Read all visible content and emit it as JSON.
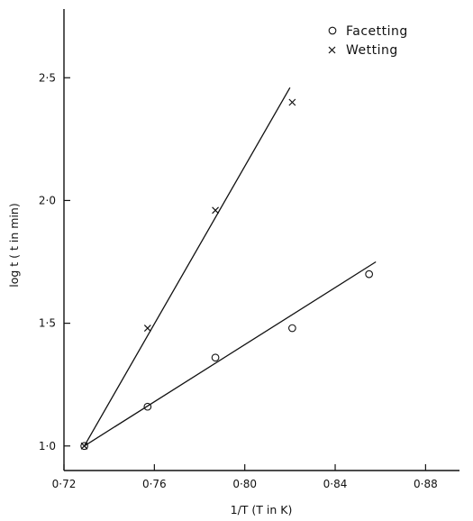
{
  "chart_data": {
    "type": "scatter",
    "xlabel": "1/T  (T in  K)",
    "ylabel": "log t  ( t in min)",
    "xlim": [
      0.72,
      0.895
    ],
    "ylim": [
      0.9,
      2.78
    ],
    "x_ticks": [
      {
        "value": 0.72,
        "label": "0·72"
      },
      {
        "value": 0.76,
        "label": "0·76"
      },
      {
        "value": 0.8,
        "label": "0·80"
      },
      {
        "value": 0.84,
        "label": "0·84"
      },
      {
        "value": 0.88,
        "label": "0·88"
      }
    ],
    "y_ticks": [
      {
        "value": 1.0,
        "label": "1·0"
      },
      {
        "value": 1.5,
        "label": "1·5"
      },
      {
        "value": 2.0,
        "label": "2·0"
      },
      {
        "value": 2.5,
        "label": "2·5"
      }
    ],
    "grid": false,
    "legend_position": "top-right",
    "series": [
      {
        "name": "Facetting",
        "marker": "circle",
        "points": [
          [
            0.729,
            1.0
          ],
          [
            0.757,
            1.16
          ],
          [
            0.787,
            1.36
          ],
          [
            0.821,
            1.48
          ],
          [
            0.855,
            1.7
          ]
        ],
        "fit_line": [
          [
            0.729,
            1.0
          ],
          [
            0.858,
            1.75
          ]
        ]
      },
      {
        "name": "Wetting",
        "marker": "cross",
        "points": [
          [
            0.729,
            1.0
          ],
          [
            0.757,
            1.48
          ],
          [
            0.787,
            1.96
          ],
          [
            0.821,
            2.4
          ]
        ],
        "fit_line": [
          [
            0.729,
            1.0
          ],
          [
            0.82,
            2.46
          ]
        ]
      }
    ]
  }
}
